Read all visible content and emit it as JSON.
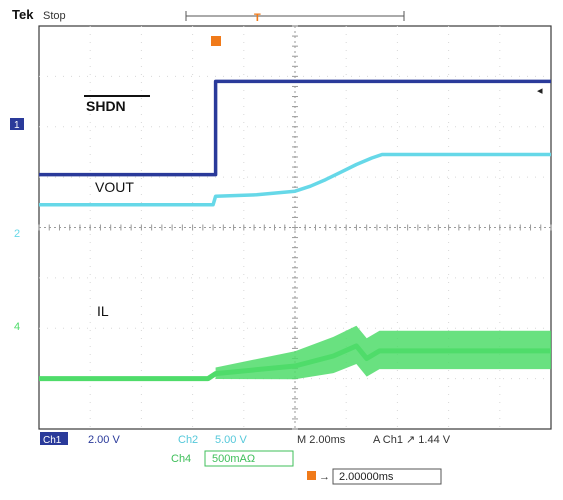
{
  "header": {
    "brand": "Tek",
    "mode": "Stop",
    "trigger_marker": "T"
  },
  "colors": {
    "ch1": "#2a3a9a",
    "ch2": "#66d8e8",
    "ch4": "#4fdc6a",
    "trigger": "#f07a1a",
    "grid": "#9a9a9a"
  },
  "chart_data": {
    "type": "line",
    "xlim": [
      -10,
      10
    ],
    "ylim": [
      -4,
      4
    ],
    "grid": true,
    "annotations": {
      "shdn": "SHDN",
      "vout": "VOUT",
      "il": "IL"
    },
    "channel_markers": {
      "ch1": "1",
      "ch2": "2",
      "ch4": "4"
    },
    "series": [
      {
        "name": "SHDN",
        "x": [
          -10,
          -3.4,
          -3.4,
          -3.1,
          -3.1,
          -2.9,
          -2.9,
          10
        ],
        "y": [
          1.05,
          1.05,
          1.05,
          1.05,
          2.9,
          2.9,
          2.9,
          2.9
        ]
      },
      {
        "name": "VOUT",
        "x": [
          -10,
          -3.4,
          -3.2,
          -3.1,
          -1.5,
          0,
          0.6,
          1.2,
          1.8,
          2.4,
          3.0,
          3.4,
          10
        ],
        "y": [
          0.45,
          0.45,
          0.45,
          0.62,
          0.65,
          0.72,
          0.82,
          0.95,
          1.1,
          1.25,
          1.38,
          1.45,
          1.45
        ]
      },
      {
        "name": "IL",
        "x": [
          -10,
          -3.4,
          -3.1,
          0,
          1.5,
          2.4,
          2.8,
          3.3,
          10
        ],
        "y": [
          -3.0,
          -3.0,
          -2.9,
          -2.75,
          -2.55,
          -2.35,
          -2.6,
          -2.45,
          -2.45
        ],
        "ripple_from": -3.1
      }
    ]
  },
  "readout": {
    "ch1_tag": "Ch1",
    "ch1_scale": "2.00 V",
    "ch2_tag": "Ch2",
    "ch2_scale": "5.00 V",
    "timebase": "M 2.00ms",
    "trigger": "A  Ch1  ↗  1.44 V",
    "ch4_tag": "Ch4",
    "ch4_scale": "500mAΩ",
    "trigger_pos": "2.00000ms"
  }
}
